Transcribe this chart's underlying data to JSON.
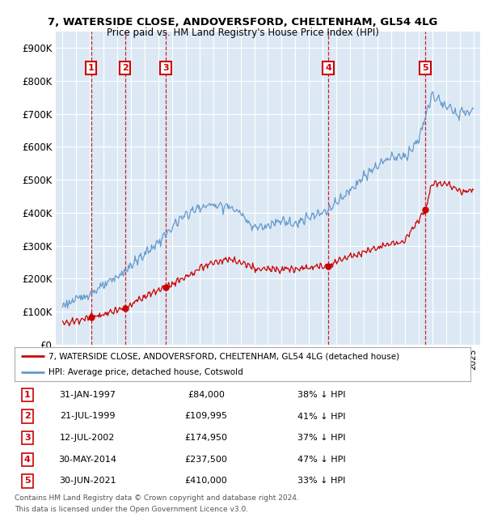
{
  "title1": "7, WATERSIDE CLOSE, ANDOVERSFORD, CHELTENHAM, GL54 4LG",
  "title2": "Price paid vs. HM Land Registry's House Price Index (HPI)",
  "background_color": "#dce9f5",
  "fig_bg_color": "#ffffff",
  "transactions": [
    {
      "num": 1,
      "price": 84000,
      "x": 1997.08
    },
    {
      "num": 2,
      "price": 109995,
      "x": 1999.55
    },
    {
      "num": 3,
      "price": 174950,
      "x": 2002.53
    },
    {
      "num": 4,
      "price": 237500,
      "x": 2014.41
    },
    {
      "num": 5,
      "price": 410000,
      "x": 2021.49
    }
  ],
  "legend1": "7, WATERSIDE CLOSE, ANDOVERSFORD, CHELTENHAM, GL54 4LG (detached house)",
  "legend2": "HPI: Average price, detached house, Cotswold",
  "footer1": "Contains HM Land Registry data © Crown copyright and database right 2024.",
  "footer2": "This data is licensed under the Open Government Licence v3.0.",
  "table_rows": [
    {
      "num": 1,
      "date": "31-JAN-1997",
      "price": "£84,000",
      "hpi": "38% ↓ HPI"
    },
    {
      "num": 2,
      "date": "21-JUL-1999",
      "price": "£109,995",
      "hpi": "41% ↓ HPI"
    },
    {
      "num": 3,
      "date": "12-JUL-2002",
      "price": "£174,950",
      "hpi": "37% ↓ HPI"
    },
    {
      "num": 4,
      "date": "30-MAY-2014",
      "price": "£237,500",
      "hpi": "47% ↓ HPI"
    },
    {
      "num": 5,
      "date": "30-JUN-2021",
      "price": "£410,000",
      "hpi": "33% ↓ HPI"
    }
  ],
  "red_color": "#cc0000",
  "blue_color": "#6699cc",
  "grid_color": "#ffffff",
  "ylim": [
    0,
    950000
  ],
  "yticks": [
    0,
    100000,
    200000,
    300000,
    400000,
    500000,
    600000,
    700000,
    800000,
    900000
  ],
  "xlim_start": 1994.5,
  "xlim_end": 2025.5
}
